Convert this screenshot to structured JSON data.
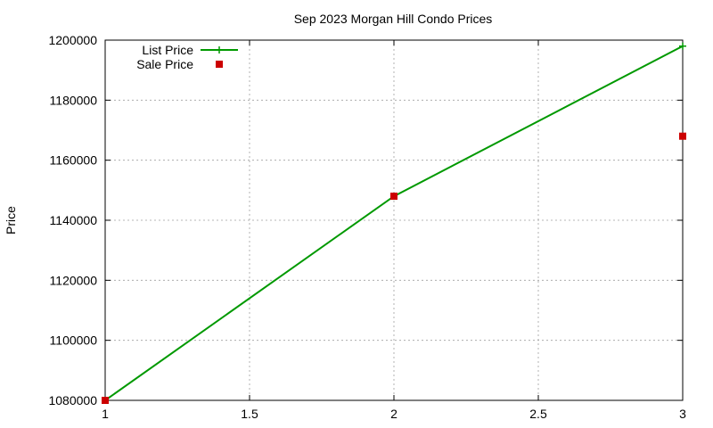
{
  "chart_data": {
    "type": "line",
    "title": "Sep 2023 Morgan Hill Condo Prices",
    "xlabel": "",
    "ylabel": "Price",
    "xlim": [
      1,
      3
    ],
    "ylim": [
      1080000,
      1200000
    ],
    "x_ticks": [
      1,
      1.5,
      2,
      2.5,
      3
    ],
    "x_tick_labels": [
      "1",
      "1.5",
      "2",
      "2.5",
      "3"
    ],
    "y_ticks": [
      1080000,
      1100000,
      1120000,
      1140000,
      1160000,
      1180000,
      1200000
    ],
    "y_tick_labels": [
      "1080000",
      "1100000",
      "1120000",
      "1140000",
      "1160000",
      "1180000",
      "1200000"
    ],
    "grid": true,
    "legend_position": "top-left",
    "series": [
      {
        "name": "List Price",
        "style": "line-points",
        "marker": "plus",
        "color": "#009900",
        "x": [
          1,
          2,
          3
        ],
        "y": [
          1080000,
          1148000,
          1198000
        ]
      },
      {
        "name": "Sale Price",
        "style": "points",
        "marker": "square",
        "color": "#cc0000",
        "x": [
          1,
          2,
          3
        ],
        "y": [
          1080000,
          1148000,
          1168000
        ]
      }
    ]
  }
}
